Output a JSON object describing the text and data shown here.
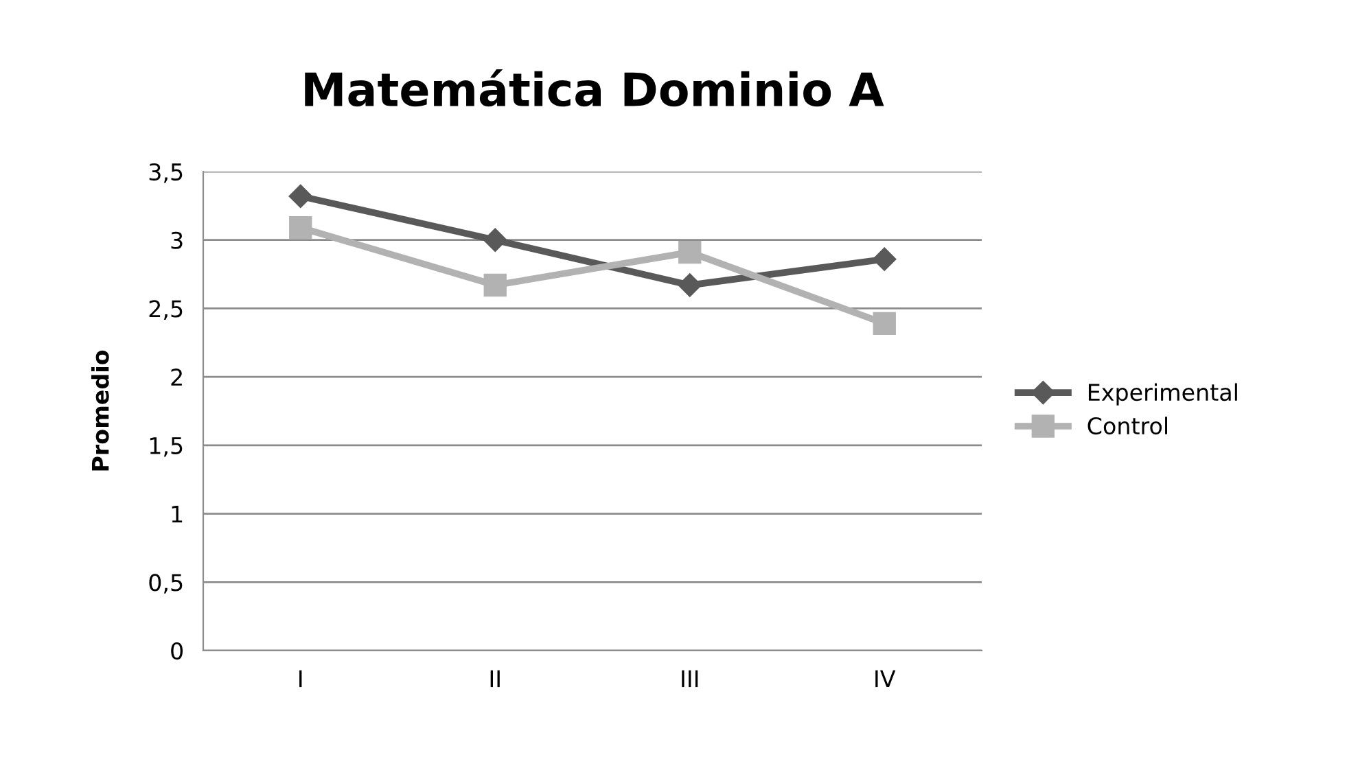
{
  "chart_data": {
    "type": "line",
    "title": "Matemática Dominio A",
    "ylabel": "Promedio",
    "categories": [
      "I",
      "II",
      "III",
      "IV"
    ],
    "series": [
      {
        "name": "Experimental",
        "color": "#595959",
        "marker": "diamond",
        "values": [
          3.32,
          3.0,
          2.67,
          2.86
        ]
      },
      {
        "name": "Control",
        "color": "#b2b2b2",
        "marker": "square",
        "values": [
          3.09,
          2.67,
          2.91,
          2.39
        ]
      }
    ],
    "ylim": [
      0,
      3.5
    ],
    "yticks": [
      0,
      {
        "value": 0.5,
        "label": "0,5"
      },
      1,
      {
        "value": 1.5,
        "label": "1,5"
      },
      2,
      {
        "value": 2.5,
        "label": "2,5"
      },
      3,
      {
        "value": 3.5,
        "label": "3,5"
      }
    ],
    "grid": "y",
    "legend": "right",
    "line_style": "solid"
  }
}
